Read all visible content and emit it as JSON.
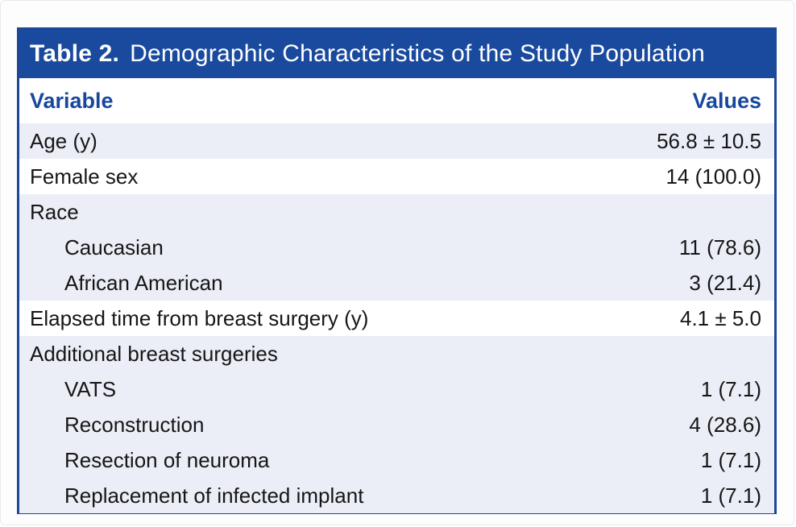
{
  "table": {
    "title_label": "Table 2.",
    "title_text": "Demographic Characteristics of the Study Population",
    "columns": {
      "variable": "Variable",
      "values": "Values"
    },
    "rows": [
      {
        "label": "Age (y)",
        "value": "56.8 ± 10.5",
        "indent": 0,
        "shaded": true
      },
      {
        "label": "Female sex",
        "value": "14 (100.0)",
        "indent": 0,
        "shaded": false
      },
      {
        "label": "Race",
        "value": "",
        "indent": 0,
        "shaded": true
      },
      {
        "label": "Caucasian",
        "value": "11 (78.6)",
        "indent": 1,
        "shaded": true
      },
      {
        "label": "African American",
        "value": "3 (21.4)",
        "indent": 1,
        "shaded": true
      },
      {
        "label": "Elapsed time from breast surgery (y)",
        "value": "4.1 ± 5.0",
        "indent": 0,
        "shaded": false
      },
      {
        "label": "Additional breast surgeries",
        "value": "",
        "indent": 0,
        "shaded": true
      },
      {
        "label": "VATS",
        "value": "1 (7.1)",
        "indent": 1,
        "shaded": true
      },
      {
        "label": "Reconstruction",
        "value": "4 (28.6)",
        "indent": 1,
        "shaded": true
      },
      {
        "label": "Resection of neuroma",
        "value": "1 (7.1)",
        "indent": 1,
        "shaded": true
      },
      {
        "label": "Replacement of infected implant",
        "value": "1 (7.1)",
        "indent": 1,
        "shaded": true
      }
    ],
    "colors": {
      "header_bg": "#1a4a9e",
      "header_text": "#ffffff",
      "column_header_text": "#17479e",
      "row_shaded_bg": "#ebeef6",
      "row_text": "#161616",
      "table_border": "#1c4896"
    }
  }
}
